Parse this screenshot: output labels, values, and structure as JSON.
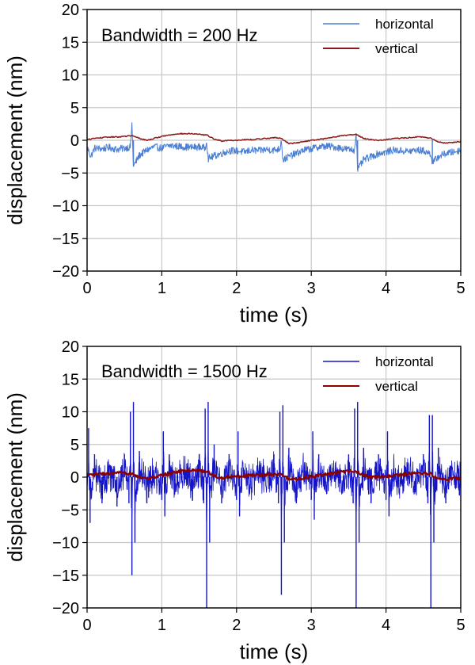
{
  "chart_data": [
    {
      "type": "line",
      "annotation": "Bandwidth = 200 Hz",
      "xlabel": "time (s)",
      "ylabel": "displacement (nm)",
      "xlim": [
        0,
        5
      ],
      "ylim": [
        -20,
        20
      ],
      "xticks": [
        "0",
        "1",
        "2",
        "3",
        "4",
        "5"
      ],
      "yticks": [
        "20",
        "15",
        "10",
        "5",
        "0",
        "−5",
        "−10",
        "−15",
        "−20"
      ],
      "grid": true,
      "legend_position": "top-right",
      "series": [
        {
          "name": "horizontal",
          "color": "#4a7fd4",
          "x": [
            0,
            0.05,
            0.1,
            0.2,
            0.3,
            0.4,
            0.5,
            0.58,
            0.6,
            0.62,
            0.7,
            0.8,
            0.9,
            1.0,
            1.1,
            1.2,
            1.3,
            1.4,
            1.5,
            1.58,
            1.6,
            1.62,
            1.7,
            1.8,
            1.9,
            2.0,
            2.1,
            2.2,
            2.3,
            2.4,
            2.5,
            2.58,
            2.6,
            2.62,
            2.7,
            2.8,
            2.9,
            3.0,
            3.1,
            3.2,
            3.3,
            3.4,
            3.5,
            3.58,
            3.6,
            3.62,
            3.7,
            3.8,
            3.9,
            4.0,
            4.1,
            4.2,
            4.3,
            4.4,
            4.5,
            4.58,
            4.6,
            4.62,
            4.7,
            4.8,
            4.9,
            5.0
          ],
          "values": [
            -1.0,
            -2.5,
            -1.2,
            -1.3,
            -1.1,
            -1.4,
            -1.2,
            -1.0,
            2.5,
            -4.0,
            -2.3,
            -1.5,
            -1.0,
            -1.2,
            -0.8,
            -0.9,
            -1.0,
            -1.1,
            -1.0,
            -1.2,
            0.0,
            -2.8,
            -2.4,
            -2.0,
            -1.6,
            -1.6,
            -1.8,
            -1.5,
            -1.6,
            -1.4,
            -1.5,
            -1.3,
            0.2,
            -3.0,
            -2.5,
            -2.0,
            -1.5,
            -1.3,
            -1.0,
            -0.9,
            -1.0,
            -1.2,
            -1.4,
            -1.5,
            1.5,
            -4.5,
            -3.0,
            -2.5,
            -2.0,
            -1.8,
            -1.5,
            -1.6,
            -1.7,
            -1.5,
            -1.6,
            -2.0,
            -2.0,
            -3.5,
            -2.5,
            -2.0,
            -1.8,
            -1.5
          ]
        },
        {
          "name": "vertical",
          "color": "#8b1a1a",
          "x": [
            0,
            0.1,
            0.2,
            0.3,
            0.4,
            0.5,
            0.6,
            0.7,
            0.8,
            0.9,
            1.0,
            1.1,
            1.2,
            1.3,
            1.4,
            1.5,
            1.6,
            1.7,
            1.8,
            1.9,
            2.0,
            2.1,
            2.2,
            2.3,
            2.4,
            2.5,
            2.6,
            2.7,
            2.8,
            2.9,
            3.0,
            3.1,
            3.2,
            3.3,
            3.4,
            3.5,
            3.6,
            3.7,
            3.8,
            3.9,
            4.0,
            4.1,
            4.2,
            4.3,
            4.4,
            4.5,
            4.6,
            4.7,
            4.8,
            4.9,
            5.0
          ],
          "values": [
            0.1,
            0.3,
            0.4,
            0.5,
            0.5,
            0.6,
            0.7,
            0.3,
            0.0,
            0.3,
            0.6,
            0.8,
            1.0,
            1.0,
            1.0,
            0.9,
            0.8,
            0.2,
            -0.1,
            0.0,
            0.0,
            0.1,
            0.1,
            0.2,
            0.3,
            0.4,
            0.3,
            -0.5,
            -0.4,
            -0.2,
            0.0,
            0.1,
            0.3,
            0.5,
            0.7,
            0.8,
            0.9,
            0.3,
            0.1,
            0.0,
            0.1,
            0.3,
            0.3,
            0.4,
            0.5,
            0.5,
            0.3,
            -0.3,
            -0.4,
            -0.3,
            -0.2
          ]
        }
      ]
    },
    {
      "type": "line",
      "annotation": "Bandwidth = 1500 Hz",
      "xlabel": "time (s)",
      "ylabel": "displacement (nm)",
      "xlim": [
        0,
        5
      ],
      "ylim": [
        -20,
        20
      ],
      "xticks": [
        "0",
        "1",
        "2",
        "3",
        "4",
        "5"
      ],
      "yticks": [
        "20",
        "15",
        "10",
        "5",
        "0",
        "−5",
        "−10",
        "−15",
        "−20"
      ],
      "grid": true,
      "legend_position": "top-right",
      "series": [
        {
          "name": "horizontal",
          "color": "#1414c8",
          "x": [
            0,
            0.02,
            0.04,
            0.1,
            0.2,
            0.3,
            0.4,
            0.5,
            0.56,
            0.58,
            0.6,
            0.62,
            0.64,
            0.7,
            0.8,
            0.9,
            1.0,
            1.02,
            1.04,
            1.1,
            1.2,
            1.3,
            1.4,
            1.5,
            1.56,
            1.58,
            1.6,
            1.62,
            1.64,
            1.7,
            1.8,
            1.9,
            2.0,
            2.02,
            2.04,
            2.1,
            2.2,
            2.3,
            2.4,
            2.5,
            2.56,
            2.58,
            2.6,
            2.62,
            2.64,
            2.7,
            2.8,
            2.9,
            3.0,
            3.02,
            3.04,
            3.1,
            3.2,
            3.3,
            3.4,
            3.5,
            3.56,
            3.58,
            3.6,
            3.62,
            3.64,
            3.7,
            3.8,
            3.9,
            4.0,
            4.02,
            4.04,
            4.1,
            4.2,
            4.3,
            4.4,
            4.5,
            4.56,
            4.58,
            4.6,
            4.62,
            4.64,
            4.7,
            4.8,
            4.9,
            5.0
          ],
          "values": [
            -2.5,
            7.5,
            -7.0,
            3.5,
            -4.0,
            3.0,
            -4.5,
            3.5,
            -4.0,
            10.0,
            -15.0,
            11.5,
            -10.0,
            4.0,
            -4.0,
            3.0,
            -3.5,
            7.0,
            -6.0,
            3.5,
            -3.0,
            3.0,
            -3.0,
            3.5,
            -4.0,
            10.5,
            -20.0,
            11.5,
            -10.0,
            5.0,
            -4.0,
            3.5,
            -3.5,
            7.0,
            -6.0,
            3.0,
            -3.0,
            3.0,
            -3.0,
            3.5,
            -4.0,
            10.0,
            -18.0,
            11.0,
            -10.0,
            4.5,
            -4.0,
            3.0,
            -3.5,
            7.0,
            -6.5,
            3.5,
            -3.0,
            3.0,
            -3.0,
            3.5,
            -4.0,
            10.5,
            -20.0,
            11.5,
            -10.0,
            4.5,
            -4.0,
            3.5,
            -3.5,
            7.0,
            -6.0,
            3.0,
            -3.0,
            3.0,
            -3.0,
            3.5,
            -4.0,
            9.5,
            -20.0,
            9.5,
            -10.0,
            4.5,
            -4.0,
            3.0,
            -2.5
          ]
        },
        {
          "name": "vertical",
          "color": "#8b0000",
          "x": [
            0,
            0.1,
            0.2,
            0.3,
            0.4,
            0.5,
            0.6,
            0.7,
            0.8,
            0.9,
            1.0,
            1.1,
            1.2,
            1.3,
            1.4,
            1.5,
            1.6,
            1.7,
            1.8,
            1.9,
            2.0,
            2.1,
            2.2,
            2.3,
            2.4,
            2.5,
            2.6,
            2.7,
            2.8,
            2.9,
            3.0,
            3.1,
            3.2,
            3.3,
            3.4,
            3.5,
            3.6,
            3.7,
            3.8,
            3.9,
            4.0,
            4.1,
            4.2,
            4.3,
            4.4,
            4.5,
            4.6,
            4.7,
            4.8,
            4.9,
            5.0
          ],
          "values": [
            0.3,
            0.4,
            0.5,
            0.5,
            0.6,
            0.6,
            0.6,
            0.0,
            -0.2,
            0.0,
            0.3,
            0.5,
            0.8,
            1.0,
            1.1,
            1.0,
            0.9,
            0.2,
            -0.1,
            0.0,
            0.1,
            0.2,
            0.3,
            0.3,
            0.4,
            0.5,
            0.4,
            -0.3,
            -0.3,
            -0.1,
            0.1,
            0.2,
            0.4,
            0.6,
            0.8,
            0.9,
            0.9,
            0.3,
            0.0,
            0.0,
            0.1,
            0.2,
            0.4,
            0.5,
            0.6,
            0.6,
            0.5,
            -0.2,
            -0.3,
            -0.2,
            -0.2
          ]
        }
      ]
    }
  ]
}
